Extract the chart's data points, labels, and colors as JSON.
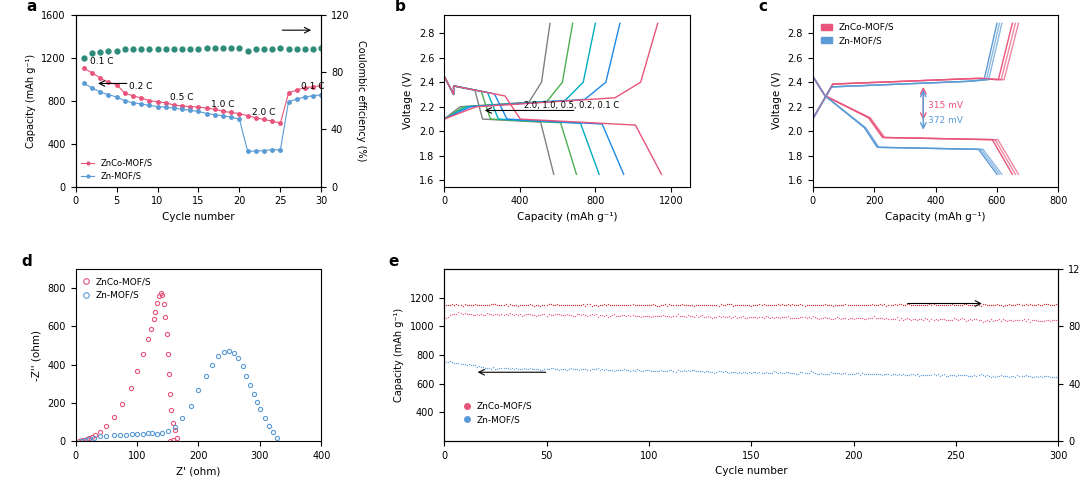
{
  "fig_width": 10.8,
  "fig_height": 4.9,
  "colors": {
    "znco_pink": "#E8547A",
    "zn_blue": "#5B9BD5",
    "ce_red": "#CC0000",
    "ce_teal": "#2E8B7A",
    "gray": "#808080",
    "cyan_blue": "#00ACC1",
    "teal_green": "#009688",
    "dark_blue": "#1565C0",
    "black": "#000000"
  },
  "panel_a": {
    "label": "a",
    "znco_cycles": [
      1,
      2,
      3,
      4,
      5,
      6,
      7,
      8,
      9,
      10,
      11,
      12,
      13,
      14,
      15,
      16,
      17,
      18,
      19,
      20,
      21,
      22,
      23,
      24,
      25,
      26,
      27,
      28,
      29,
      30
    ],
    "znco_cap": [
      1100,
      1060,
      1010,
      970,
      950,
      870,
      845,
      825,
      800,
      790,
      780,
      760,
      750,
      745,
      740,
      730,
      720,
      700,
      690,
      680,
      660,
      640,
      625,
      610,
      590,
      870,
      900,
      920,
      930,
      940
    ],
    "zn_cap": [
      960,
      920,
      880,
      855,
      835,
      800,
      780,
      770,
      755,
      745,
      740,
      730,
      720,
      710,
      700,
      680,
      670,
      660,
      645,
      630,
      330,
      330,
      335,
      345,
      340,
      790,
      815,
      835,
      845,
      855
    ],
    "ce_vals": [
      90,
      93,
      94,
      95,
      95,
      96,
      96,
      96,
      96,
      96,
      96,
      96,
      96,
      96,
      96,
      97,
      97,
      97,
      97,
      97,
      95,
      96,
      96,
      96,
      97,
      96,
      96,
      96,
      96,
      97
    ],
    "xlim": [
      0,
      30
    ],
    "ylim_left": [
      0,
      1600
    ],
    "ylim_right": [
      0,
      120
    ],
    "xlabel": "Cycle number",
    "ylabel_left": "Capacity (mAh g⁻¹)",
    "ylabel_right": "Coulombic efficiency (%)",
    "rate_labels": [
      "0.1 C",
      "0.2 C",
      "0.5 C",
      "1.0 C",
      "2.0 C",
      "0.1 C"
    ],
    "rate_x": [
      1.8,
      6.5,
      11.5,
      16.5,
      21.5,
      27.5
    ],
    "rate_y": [
      1140,
      905,
      810,
      745,
      668,
      905
    ]
  },
  "panel_b": {
    "label": "b",
    "xlabel": "Capacity (mAh g⁻¹)",
    "ylabel": "Voltage (V)",
    "xlim": [
      0,
      1300
    ],
    "ylim": [
      1.55,
      2.95
    ],
    "colors": [
      "#808080",
      "#4CAF50",
      "#00ACC1",
      "#1E88E5",
      "#E8547A"
    ],
    "discharge_caps": [
      580,
      700,
      820,
      950,
      1150
    ],
    "charge_caps": [
      560,
      680,
      800,
      930,
      1130
    ]
  },
  "panel_c": {
    "label": "c",
    "xlabel": "Capacity (mAh g⁻¹)",
    "ylabel": "Voltage (V)",
    "xlim": [
      0,
      800
    ],
    "ylim": [
      1.55,
      2.95
    ],
    "znco_color": "#E8547A",
    "zn_color": "#5B9BD5",
    "annotation_315": "315 mV",
    "annotation_372": "372 mV"
  },
  "panel_d": {
    "label": "d",
    "xlabel": "Z' (ohm)",
    "ylabel": "-Z'' (ohm)",
    "xlim": [
      0,
      400
    ],
    "ylim": [
      0,
      900
    ],
    "znco_color": "#E8547A",
    "zn_color": "#5B9BD5"
  },
  "panel_e": {
    "label": "e",
    "xlabel": "Cycle number",
    "ylabel_left": "Capacity (mAh g⁻¹)",
    "ylabel_right": "Coulombic efficiency (%)",
    "xlim": [
      0,
      300
    ],
    "ylim_left": [
      200,
      1400
    ],
    "ylim_right": [
      0,
      120
    ],
    "n_cycles": 300,
    "znco_cap_start": 1080,
    "znco_cap_end": 1040,
    "zn_cap_start": 750,
    "zn_cap_end": 640,
    "ce_val": 95,
    "znco_color": "#E8547A",
    "zn_color": "#5B9BD5",
    "ce_color": "#CC2222"
  }
}
